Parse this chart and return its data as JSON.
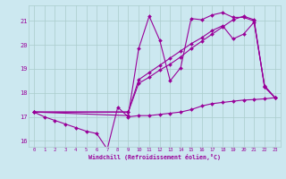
{
  "xlabel": "Windchill (Refroidissement éolien,°C)",
  "bg_color": "#cce8f0",
  "grid_color": "#aacccc",
  "line_color": "#990099",
  "xlim": [
    -0.5,
    23.5
  ],
  "ylim": [
    15.75,
    21.65
  ],
  "xticks": [
    0,
    1,
    2,
    3,
    4,
    5,
    6,
    7,
    8,
    9,
    10,
    11,
    12,
    13,
    14,
    15,
    16,
    17,
    18,
    19,
    20,
    21,
    22,
    23
  ],
  "yticks": [
    16,
    17,
    18,
    19,
    20,
    21
  ],
  "line1_x": [
    0,
    1,
    2,
    3,
    4,
    5,
    6,
    7,
    8,
    9,
    10,
    11,
    12,
    13,
    14,
    15,
    16,
    17,
    18,
    19,
    20,
    21,
    22,
    23
  ],
  "line1_y": [
    17.2,
    17.0,
    16.85,
    16.7,
    16.55,
    16.4,
    16.3,
    15.65,
    17.4,
    17.0,
    17.05,
    17.05,
    17.1,
    17.15,
    17.2,
    17.3,
    17.45,
    17.55,
    17.6,
    17.65,
    17.7,
    17.72,
    17.75,
    17.8
  ],
  "line2_x": [
    0,
    9,
    10,
    11,
    12,
    13,
    14,
    15,
    16,
    17,
    18,
    19,
    20,
    21,
    22,
    23
  ],
  "line2_y": [
    17.2,
    17.2,
    18.55,
    18.85,
    19.15,
    19.45,
    19.75,
    20.05,
    20.3,
    20.6,
    20.8,
    20.25,
    20.45,
    20.95,
    18.3,
    17.8
  ],
  "line3_x": [
    0,
    9,
    10,
    11,
    12,
    13,
    14,
    15,
    16,
    17,
    18,
    19,
    20,
    21,
    22,
    23
  ],
  "line3_y": [
    17.2,
    17.2,
    18.4,
    18.65,
    18.95,
    19.2,
    19.5,
    19.85,
    20.15,
    20.45,
    20.75,
    21.05,
    21.2,
    21.05,
    18.25,
    17.8
  ],
  "line4_x": [
    0,
    9,
    10,
    11,
    12,
    13,
    14,
    15,
    16,
    17,
    18,
    19,
    20,
    21,
    22,
    23
  ],
  "line4_y": [
    17.2,
    17.05,
    19.85,
    21.2,
    20.2,
    18.5,
    19.05,
    21.1,
    21.05,
    21.25,
    21.35,
    21.15,
    21.15,
    21.0,
    18.25,
    17.8
  ]
}
